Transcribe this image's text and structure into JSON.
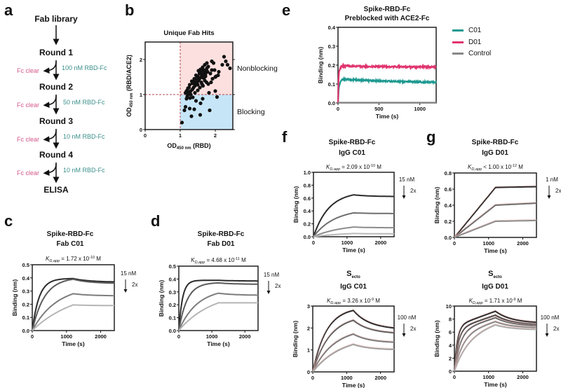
{
  "panel_labels": {
    "a": "a",
    "b": "b",
    "c": "c",
    "d": "d",
    "e": "e",
    "f": "f",
    "g": "g"
  },
  "flow": {
    "start": "Fab library",
    "rounds": [
      "Round 1",
      "Round 2",
      "Round 3",
      "Round 4"
    ],
    "end": "ELISA",
    "clear_label": "Fc clear",
    "concentrations": [
      "100 nM RBD-Fc",
      "50 nM RBD-Fc",
      "10 nM RBD-Fc",
      "10 nM RBD-Fc"
    ],
    "colors": {
      "clear": "#d4578b",
      "conc": "#3a8f8a"
    }
  },
  "chart_data": [
    {
      "id": "b",
      "type": "scatter",
      "title": "Unique Fab Hits",
      "xlabel": "OD450 nm (RBD)",
      "ylabel": "OD450 nm (RBD/ACE2)",
      "xlabel_main": "OD",
      "xlabel_sub": "450 nm",
      "xlabel_tail": " (RBD)",
      "ylabel_main": "OD",
      "ylabel_sub": "450 nm",
      "ylabel_tail": " (RBD/ACE2)",
      "xlim": [
        0,
        2.5
      ],
      "ylim": [
        0,
        2.5
      ],
      "xticks": [
        0,
        1,
        2
      ],
      "yticks": [
        0,
        1,
        2
      ],
      "thresholds": {
        "x": 1,
        "y": 1
      },
      "regions": [
        {
          "label": "Nonblocking",
          "color": "#fbe0df",
          "y_range": [
            1,
            2.5
          ],
          "x_range": [
            1,
            2.5
          ]
        },
        {
          "label": "Blocking",
          "color": "#c6e6f7",
          "y_range": [
            0,
            1
          ],
          "x_range": [
            1,
            2.5
          ]
        }
      ],
      "points": [
        [
          1.05,
          0.2
        ],
        [
          1.12,
          0.55
        ],
        [
          1.15,
          0.65
        ],
        [
          1.18,
          0.88
        ],
        [
          1.2,
          0.95
        ],
        [
          1.22,
          1.0
        ],
        [
          1.25,
          1.05
        ],
        [
          1.27,
          0.6
        ],
        [
          1.3,
          1.1
        ],
        [
          1.32,
          0.38
        ],
        [
          1.35,
          1.15
        ],
        [
          1.38,
          1.2
        ],
        [
          1.4,
          0.58
        ],
        [
          1.42,
          1.25
        ],
        [
          1.44,
          1.3
        ],
        [
          1.45,
          0.82
        ],
        [
          1.48,
          1.35
        ],
        [
          1.5,
          1.28
        ],
        [
          1.52,
          1.4
        ],
        [
          1.55,
          1.45
        ],
        [
          1.57,
          0.42
        ],
        [
          1.58,
          0.75
        ],
        [
          1.6,
          1.5
        ],
        [
          1.62,
          1.55
        ],
        [
          1.64,
          0.88
        ],
        [
          1.65,
          1.48
        ],
        [
          1.68,
          1.6
        ],
        [
          1.7,
          1.62
        ],
        [
          1.72,
          1.58
        ],
        [
          1.74,
          1.7
        ],
        [
          1.76,
          1.75
        ],
        [
          1.78,
          1.65
        ],
        [
          1.8,
          1.8
        ],
        [
          1.82,
          1.05
        ],
        [
          1.84,
          0.55
        ],
        [
          1.3,
          1.0
        ],
        [
          1.35,
          1.32
        ],
        [
          1.4,
          1.38
        ],
        [
          1.45,
          1.45
        ],
        [
          1.5,
          1.52
        ],
        [
          1.55,
          1.6
        ],
        [
          1.6,
          1.35
        ],
        [
          1.65,
          1.25
        ],
        [
          1.7,
          1.4
        ],
        [
          1.25,
          1.2
        ],
        [
          1.2,
          1.12
        ],
        [
          1.15,
          1.05
        ],
        [
          1.28,
          0.9
        ],
        [
          1.36,
          0.92
        ],
        [
          1.42,
          1.05
        ],
        [
          1.5,
          1.12
        ],
        [
          1.56,
          1.2
        ],
        [
          1.62,
          1.3
        ],
        [
          1.68,
          1.48
        ],
        [
          1.72,
          1.52
        ],
        [
          1.9,
          1.95
        ],
        [
          1.95,
          1.9
        ],
        [
          1.98,
          1.7
        ],
        [
          2.0,
          1.5
        ],
        [
          2.02,
          1.52
        ],
        [
          2.05,
          0.93
        ],
        [
          2.08,
          1.55
        ],
        [
          2.1,
          1.65
        ],
        [
          2.2,
          1.85
        ],
        [
          2.25,
          2.08
        ],
        [
          2.3,
          1.95
        ],
        [
          2.35,
          1.85
        ],
        [
          2.42,
          1.75
        ],
        [
          1.88,
          1.35
        ],
        [
          1.92,
          1.45
        ],
        [
          1.75,
          1.35
        ],
        [
          1.8,
          1.3
        ],
        [
          1.86,
          1.6
        ],
        [
          1.9,
          1.7
        ],
        [
          2.0,
          1.1
        ],
        [
          1.45,
          1.55
        ],
        [
          1.52,
          1.68
        ],
        [
          1.58,
          1.72
        ],
        [
          1.64,
          1.78
        ],
        [
          1.7,
          1.85
        ],
        [
          1.76,
          1.9
        ],
        [
          1.4,
          1.45
        ],
        [
          1.33,
          1.38
        ],
        [
          1.27,
          1.28
        ],
        [
          1.22,
          1.18
        ],
        [
          1.18,
          1.1
        ],
        [
          1.6,
          1.65
        ],
        [
          1.66,
          1.7
        ]
      ],
      "right_labels": [
        "Nonblocking",
        "Blocking"
      ]
    },
    {
      "id": "e",
      "type": "line",
      "title": [
        "Spike-RBD-Fc",
        "Preblocked with ACE2-Fc"
      ],
      "xlabel": "Time (s)",
      "ylabel": "Binding (nm)",
      "xlim": [
        0,
        1200
      ],
      "ylim": [
        0,
        0.4
      ],
      "xticks": [
        0,
        500,
        1000
      ],
      "yticks": [
        0.0,
        0.1,
        0.2,
        0.3,
        0.4
      ],
      "ytick_labels": [
        "0.0",
        "0.1",
        "0.2",
        "0.3",
        "0.4"
      ],
      "legend": "right",
      "series": [
        {
          "name": "C01",
          "color": "#1e9990",
          "x": [
            0,
            10,
            30,
            60,
            100,
            200,
            400,
            600,
            800,
            1000,
            1200
          ],
          "y": [
            0,
            0.08,
            0.115,
            0.125,
            0.125,
            0.122,
            0.118,
            0.115,
            0.113,
            0.111,
            0.11
          ]
        },
        {
          "name": "D01",
          "color": "#e0356f",
          "x": [
            0,
            10,
            30,
            60,
            100,
            200,
            400,
            600,
            800,
            1000,
            1200
          ],
          "y": [
            0,
            0.16,
            0.19,
            0.197,
            0.195,
            0.194,
            0.193,
            0.192,
            0.191,
            0.191,
            0.19
          ]
        },
        {
          "name": "Control",
          "color": "#888888",
          "x": [
            0,
            1200
          ],
          "y": [
            0.002,
            0.002
          ]
        }
      ]
    },
    {
      "id": "c",
      "type": "line",
      "title": [
        "Spike-RBD-Fc",
        "Fab C01"
      ],
      "kd": {
        "prefix": "K",
        "sub": "D,app",
        "text": " = 1.72 x 10",
        "exp": "-10",
        "unit": " M"
      },
      "xlabel": "Time (s)",
      "ylabel": "Binding (nm)",
      "xlim": [
        0,
        2400
      ],
      "ylim": [
        0,
        0.5
      ],
      "xticks": [
        0,
        1000,
        2000
      ],
      "yticks": [
        0,
        0.1,
        0.2,
        0.3,
        0.4,
        0.5
      ],
      "ytick_labels": [
        "0.0",
        "0.1",
        "0.2",
        "0.3",
        "0.4",
        "0.5"
      ],
      "conc_note": {
        "top": "15 nM",
        "step": "2x"
      },
      "curves": [
        {
          "plateau": 0.395,
          "kon": 0.005,
          "end": 0.37,
          "shade": "#2b2b2b"
        },
        {
          "plateau": 0.39,
          "kon": 0.0028,
          "end": 0.36,
          "shade": "#5a5a5a"
        },
        {
          "plateau": 0.28,
          "kon": 0.0014,
          "end": 0.265,
          "shade": "#7d7d7d"
        },
        {
          "plateau": 0.195,
          "kon": 0.0008,
          "end": 0.19,
          "shade": "#b5b5b5"
        }
      ]
    },
    {
      "id": "d",
      "type": "line",
      "title": [
        "Spike-RBD-Fc",
        "Fab D01"
      ],
      "kd": {
        "prefix": "K",
        "sub": "D,app",
        "text": " = 4.68 x 10",
        "exp": "-11",
        "unit": " M"
      },
      "xlabel": "Time (s)",
      "ylabel": "Binding (nm)",
      "xlim": [
        0,
        2400
      ],
      "ylim": [
        0,
        0.5
      ],
      "xticks": [
        0,
        1000,
        2000
      ],
      "yticks": [
        0,
        0.1,
        0.2,
        0.3,
        0.4,
        0.5
      ],
      "ytick_labels": [
        "0.0",
        "0.1",
        "0.2",
        "0.3",
        "0.4",
        "0.5"
      ],
      "conc_note": {
        "top": "15 nM",
        "step": "2x"
      },
      "curves": [
        {
          "plateau": 0.39,
          "kon": 0.009,
          "end": 0.385,
          "shade": "#2b2b2b"
        },
        {
          "plateau": 0.37,
          "kon": 0.004,
          "end": 0.36,
          "shade": "#5a5a5a"
        },
        {
          "plateau": 0.29,
          "kon": 0.0018,
          "end": 0.275,
          "shade": "#7d7d7d"
        },
        {
          "plateau": 0.215,
          "kon": 0.001,
          "end": 0.215,
          "shade": "#b5b5b5"
        }
      ]
    },
    {
      "id": "f-top",
      "type": "line",
      "title": [
        "Spike-RBD-Fc",
        "IgG C01"
      ],
      "kd": {
        "prefix": "K",
        "sub": "D,app",
        "text": " = 2.09 x 10",
        "exp": "-10",
        "unit": " M"
      },
      "xlabel": "Time (s)",
      "ylabel": "Binding (nm)",
      "xlim": [
        0,
        2400
      ],
      "ylim": [
        0,
        1.0
      ],
      "xticks": [
        0,
        1000,
        2000
      ],
      "yticks": [
        0,
        0.2,
        0.4,
        0.6,
        0.8,
        1.0
      ],
      "ytick_labels": [
        "0.0",
        "0.2",
        "0.4",
        "0.6",
        "0.8",
        "1.0"
      ],
      "conc_note": {
        "top": "15 nM",
        "step": "2x"
      },
      "curves": [
        {
          "plateau": 0.65,
          "kon": 0.0022,
          "end": 0.625,
          "shade": "#2b2b2b"
        },
        {
          "plateau": 0.37,
          "kon": 0.0016,
          "end": 0.36,
          "shade": "#6e6e6e"
        },
        {
          "plateau": 0.15,
          "kon": 0.0012,
          "end": 0.14,
          "shade": "#8c8c8c"
        },
        {
          "plateau": 0.05,
          "kon": 0.001,
          "end": 0.045,
          "shade": "#b8b8b8"
        }
      ]
    },
    {
      "id": "g-top",
      "type": "line",
      "title": [
        "Spike-RBD-Fc",
        "IgG D01"
      ],
      "kd": {
        "prefix": "K",
        "sub": "D,app",
        "text": " < 1.00 x 10",
        "exp": "-12",
        "unit": " M"
      },
      "xlabel": "Time (s)",
      "ylabel": "Binding (nm)",
      "xlim": [
        0,
        2400
      ],
      "ylim": [
        0,
        0.8
      ],
      "xticks": [
        0,
        1000,
        2000
      ],
      "yticks": [
        0,
        0.2,
        0.4,
        0.6,
        0.8
      ],
      "ytick_labels": [
        "0.0",
        "0.2",
        "0.4",
        "0.6",
        "0.8"
      ],
      "conc_note": {
        "top": "1 nM",
        "step": "2x"
      },
      "curves": [
        {
          "plateau": 0.62,
          "kon": 0.00055,
          "end": 0.63,
          "shade": "#2b2b2b",
          "linear": true
        },
        {
          "plateau": 0.4,
          "kon": 0.00055,
          "end": 0.425,
          "shade": "#6e6e6e",
          "linear": true
        },
        {
          "plateau": 0.2,
          "kon": 0.00055,
          "end": 0.21,
          "shade": "#8c8c8c",
          "linear": true
        }
      ]
    },
    {
      "id": "f-bottom",
      "type": "line",
      "title": [
        "S",
        "IgG C01"
      ],
      "title_sub": "ecto",
      "kd": {
        "prefix": "K",
        "sub": "D,app",
        "text": " = 3.26 x 10",
        "exp": "-9",
        "unit": " M"
      },
      "xlabel": "Time (s)",
      "ylabel": "Binding (nm)",
      "xlim": [
        0,
        2400
      ],
      "ylim": [
        0,
        3
      ],
      "xticks": [
        0,
        1000,
        2000
      ],
      "yticks": [
        0,
        1,
        2,
        3
      ],
      "ytick_labels": [
        "0",
        "1",
        "2",
        "3"
      ],
      "conc_note": {
        "top": "100 nM",
        "step": "2x"
      },
      "curves": [
        {
          "plateau": 2.8,
          "kon": 0.0025,
          "end": 2.0,
          "shade": "#2b2b2b"
        },
        {
          "plateau": 2.35,
          "kon": 0.002,
          "end": 1.78,
          "shade": "#5e5e5e"
        },
        {
          "plateau": 1.72,
          "kon": 0.0016,
          "end": 1.35,
          "shade": "#7a7a7a"
        },
        {
          "plateau": 1.25,
          "kon": 0.0012,
          "end": 1.02,
          "shade": "#a0a0a0"
        }
      ]
    },
    {
      "id": "g-bottom",
      "type": "line",
      "title": [
        "S",
        "IgG D01"
      ],
      "title_sub": "ecto",
      "kd": {
        "prefix": "K",
        "sub": "D,app",
        "text": " = 1.71 x 10",
        "exp": "-9",
        "unit": " M"
      },
      "xlabel": "Time (s)",
      "ylabel": "Binding (nm)",
      "xlim": [
        0,
        2400
      ],
      "ylim": [
        0,
        10
      ],
      "xticks": [
        0,
        1000,
        2000
      ],
      "yticks": [
        0,
        2,
        4,
        6,
        8,
        10
      ],
      "ytick_labels": [
        "0",
        "2",
        "4",
        "6",
        "8",
        "10"
      ],
      "conc_note": {
        "top": "100 nM",
        "step": "2x"
      },
      "curves": [
        {
          "plateau": 9.2,
          "kon": 0.012,
          "end": 7.5,
          "shade": "#2b2b2b",
          "biphasic": true
        },
        {
          "plateau": 8.6,
          "kon": 0.009,
          "end": 7.2,
          "shade": "#4a4a4a",
          "biphasic": true
        },
        {
          "plateau": 8.2,
          "kon": 0.006,
          "end": 7.0,
          "shade": "#6a6a6a",
          "biphasic": true
        },
        {
          "plateau": 7.6,
          "kon": 0.004,
          "end": 6.7,
          "shade": "#8a8a8a",
          "biphasic": true
        },
        {
          "plateau": 7.1,
          "kon": 0.0025,
          "end": 6.4,
          "shade": "#ababab",
          "biphasic": true
        }
      ]
    }
  ]
}
